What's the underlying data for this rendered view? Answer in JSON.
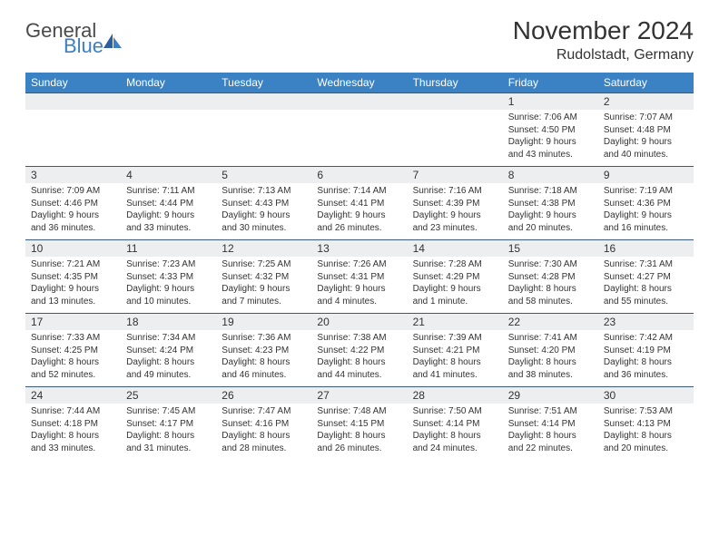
{
  "logo": {
    "word1": "General",
    "word2": "Blue"
  },
  "title": "November 2024",
  "location": "Rudolstadt, Germany",
  "colors": {
    "header_bg": "#3b82c4",
    "header_text": "#ffffff",
    "daynum_bg": "#eceef0",
    "row_border": "#3b5a7a",
    "text": "#333333",
    "logo_gray": "#4a4a4a",
    "logo_blue": "#3b7fc4",
    "page_bg": "#ffffff"
  },
  "typography": {
    "title_fontsize": 28,
    "location_fontsize": 16,
    "weekday_fontsize": 12,
    "daynum_fontsize": 12,
    "body_fontsize": 10
  },
  "weekdays": [
    "Sunday",
    "Monday",
    "Tuesday",
    "Wednesday",
    "Thursday",
    "Friday",
    "Saturday"
  ],
  "weeks": [
    [
      {
        "n": "",
        "sunrise": "",
        "sunset": "",
        "daylight": ""
      },
      {
        "n": "",
        "sunrise": "",
        "sunset": "",
        "daylight": ""
      },
      {
        "n": "",
        "sunrise": "",
        "sunset": "",
        "daylight": ""
      },
      {
        "n": "",
        "sunrise": "",
        "sunset": "",
        "daylight": ""
      },
      {
        "n": "",
        "sunrise": "",
        "sunset": "",
        "daylight": ""
      },
      {
        "n": "1",
        "sunrise": "Sunrise: 7:06 AM",
        "sunset": "Sunset: 4:50 PM",
        "daylight": "Daylight: 9 hours and 43 minutes."
      },
      {
        "n": "2",
        "sunrise": "Sunrise: 7:07 AM",
        "sunset": "Sunset: 4:48 PM",
        "daylight": "Daylight: 9 hours and 40 minutes."
      }
    ],
    [
      {
        "n": "3",
        "sunrise": "Sunrise: 7:09 AM",
        "sunset": "Sunset: 4:46 PM",
        "daylight": "Daylight: 9 hours and 36 minutes."
      },
      {
        "n": "4",
        "sunrise": "Sunrise: 7:11 AM",
        "sunset": "Sunset: 4:44 PM",
        "daylight": "Daylight: 9 hours and 33 minutes."
      },
      {
        "n": "5",
        "sunrise": "Sunrise: 7:13 AM",
        "sunset": "Sunset: 4:43 PM",
        "daylight": "Daylight: 9 hours and 30 minutes."
      },
      {
        "n": "6",
        "sunrise": "Sunrise: 7:14 AM",
        "sunset": "Sunset: 4:41 PM",
        "daylight": "Daylight: 9 hours and 26 minutes."
      },
      {
        "n": "7",
        "sunrise": "Sunrise: 7:16 AM",
        "sunset": "Sunset: 4:39 PM",
        "daylight": "Daylight: 9 hours and 23 minutes."
      },
      {
        "n": "8",
        "sunrise": "Sunrise: 7:18 AM",
        "sunset": "Sunset: 4:38 PM",
        "daylight": "Daylight: 9 hours and 20 minutes."
      },
      {
        "n": "9",
        "sunrise": "Sunrise: 7:19 AM",
        "sunset": "Sunset: 4:36 PM",
        "daylight": "Daylight: 9 hours and 16 minutes."
      }
    ],
    [
      {
        "n": "10",
        "sunrise": "Sunrise: 7:21 AM",
        "sunset": "Sunset: 4:35 PM",
        "daylight": "Daylight: 9 hours and 13 minutes."
      },
      {
        "n": "11",
        "sunrise": "Sunrise: 7:23 AM",
        "sunset": "Sunset: 4:33 PM",
        "daylight": "Daylight: 9 hours and 10 minutes."
      },
      {
        "n": "12",
        "sunrise": "Sunrise: 7:25 AM",
        "sunset": "Sunset: 4:32 PM",
        "daylight": "Daylight: 9 hours and 7 minutes."
      },
      {
        "n": "13",
        "sunrise": "Sunrise: 7:26 AM",
        "sunset": "Sunset: 4:31 PM",
        "daylight": "Daylight: 9 hours and 4 minutes."
      },
      {
        "n": "14",
        "sunrise": "Sunrise: 7:28 AM",
        "sunset": "Sunset: 4:29 PM",
        "daylight": "Daylight: 9 hours and 1 minute."
      },
      {
        "n": "15",
        "sunrise": "Sunrise: 7:30 AM",
        "sunset": "Sunset: 4:28 PM",
        "daylight": "Daylight: 8 hours and 58 minutes."
      },
      {
        "n": "16",
        "sunrise": "Sunrise: 7:31 AM",
        "sunset": "Sunset: 4:27 PM",
        "daylight": "Daylight: 8 hours and 55 minutes."
      }
    ],
    [
      {
        "n": "17",
        "sunrise": "Sunrise: 7:33 AM",
        "sunset": "Sunset: 4:25 PM",
        "daylight": "Daylight: 8 hours and 52 minutes."
      },
      {
        "n": "18",
        "sunrise": "Sunrise: 7:34 AM",
        "sunset": "Sunset: 4:24 PM",
        "daylight": "Daylight: 8 hours and 49 minutes."
      },
      {
        "n": "19",
        "sunrise": "Sunrise: 7:36 AM",
        "sunset": "Sunset: 4:23 PM",
        "daylight": "Daylight: 8 hours and 46 minutes."
      },
      {
        "n": "20",
        "sunrise": "Sunrise: 7:38 AM",
        "sunset": "Sunset: 4:22 PM",
        "daylight": "Daylight: 8 hours and 44 minutes."
      },
      {
        "n": "21",
        "sunrise": "Sunrise: 7:39 AM",
        "sunset": "Sunset: 4:21 PM",
        "daylight": "Daylight: 8 hours and 41 minutes."
      },
      {
        "n": "22",
        "sunrise": "Sunrise: 7:41 AM",
        "sunset": "Sunset: 4:20 PM",
        "daylight": "Daylight: 8 hours and 38 minutes."
      },
      {
        "n": "23",
        "sunrise": "Sunrise: 7:42 AM",
        "sunset": "Sunset: 4:19 PM",
        "daylight": "Daylight: 8 hours and 36 minutes."
      }
    ],
    [
      {
        "n": "24",
        "sunrise": "Sunrise: 7:44 AM",
        "sunset": "Sunset: 4:18 PM",
        "daylight": "Daylight: 8 hours and 33 minutes."
      },
      {
        "n": "25",
        "sunrise": "Sunrise: 7:45 AM",
        "sunset": "Sunset: 4:17 PM",
        "daylight": "Daylight: 8 hours and 31 minutes."
      },
      {
        "n": "26",
        "sunrise": "Sunrise: 7:47 AM",
        "sunset": "Sunset: 4:16 PM",
        "daylight": "Daylight: 8 hours and 28 minutes."
      },
      {
        "n": "27",
        "sunrise": "Sunrise: 7:48 AM",
        "sunset": "Sunset: 4:15 PM",
        "daylight": "Daylight: 8 hours and 26 minutes."
      },
      {
        "n": "28",
        "sunrise": "Sunrise: 7:50 AM",
        "sunset": "Sunset: 4:14 PM",
        "daylight": "Daylight: 8 hours and 24 minutes."
      },
      {
        "n": "29",
        "sunrise": "Sunrise: 7:51 AM",
        "sunset": "Sunset: 4:14 PM",
        "daylight": "Daylight: 8 hours and 22 minutes."
      },
      {
        "n": "30",
        "sunrise": "Sunrise: 7:53 AM",
        "sunset": "Sunset: 4:13 PM",
        "daylight": "Daylight: 8 hours and 20 minutes."
      }
    ]
  ]
}
